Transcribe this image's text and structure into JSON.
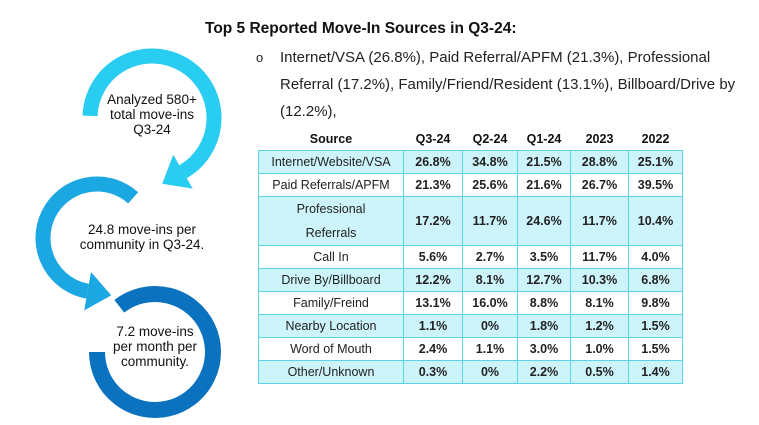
{
  "title": "Top 5 Reported Move-In Sources in Q3-24:",
  "bullet": {
    "marker": "o",
    "text": "Internet/VSA (26.8%), Paid Referral/APFM (21.3%), Professional Referral (17.2%), Family/Friend/Resident (13.1%), Billboard/Drive by (12.2%),"
  },
  "stats": [
    {
      "line1": "Analyzed 580+",
      "line2": "total move-ins",
      "line3": "Q3-24",
      "color": "#29cdf1"
    },
    {
      "line1": "24.8 move-ins per",
      "line2": "community in Q3-24.",
      "line3": "",
      "color": "#1ba7e1"
    },
    {
      "line1": "7.2 move-ins",
      "line2": "per month per",
      "line3": "community.",
      "color": "#0b72c0"
    }
  ],
  "table": {
    "headers": [
      "Source",
      "Q3-24",
      "Q2-24",
      "Q1-24",
      "2023",
      "2022"
    ],
    "rows": [
      [
        "Internet/Website/VSA",
        "26.8%",
        "34.8%",
        "21.5%",
        "28.8%",
        "25.1%"
      ],
      [
        "Paid Referrals/APFM",
        "21.3%",
        "25.6%",
        "21.6%",
        "26.7%",
        "39.5%"
      ],
      [
        "Professional Referrals",
        "17.2%",
        "11.7%",
        "24.6%",
        "11.7%",
        "10.4%"
      ],
      [
        "Call In",
        "5.6%",
        "2.7%",
        "3.5%",
        "11.7%",
        "4.0%"
      ],
      [
        "Drive By/Billboard",
        "12.2%",
        "8.1%",
        "12.7%",
        "10.3%",
        "6.8%"
      ],
      [
        "Family/Freind",
        "13.1%",
        "16.0%",
        "8.8%",
        "8.1%",
        "9.8%"
      ],
      [
        "Nearby Location",
        "1.1%",
        "0%",
        "1.8%",
        "1.2%",
        "1.5%"
      ],
      [
        "Word of Mouth",
        "2.4%",
        "1.1%",
        "3.0%",
        "1.0%",
        "1.5%"
      ],
      [
        "Other/Unknown",
        "0.3%",
        "0%",
        "2.2%",
        "0.5%",
        "1.4%"
      ]
    ],
    "shade_color": "#cdf4fb",
    "border_color": "#5cd3e8"
  }
}
